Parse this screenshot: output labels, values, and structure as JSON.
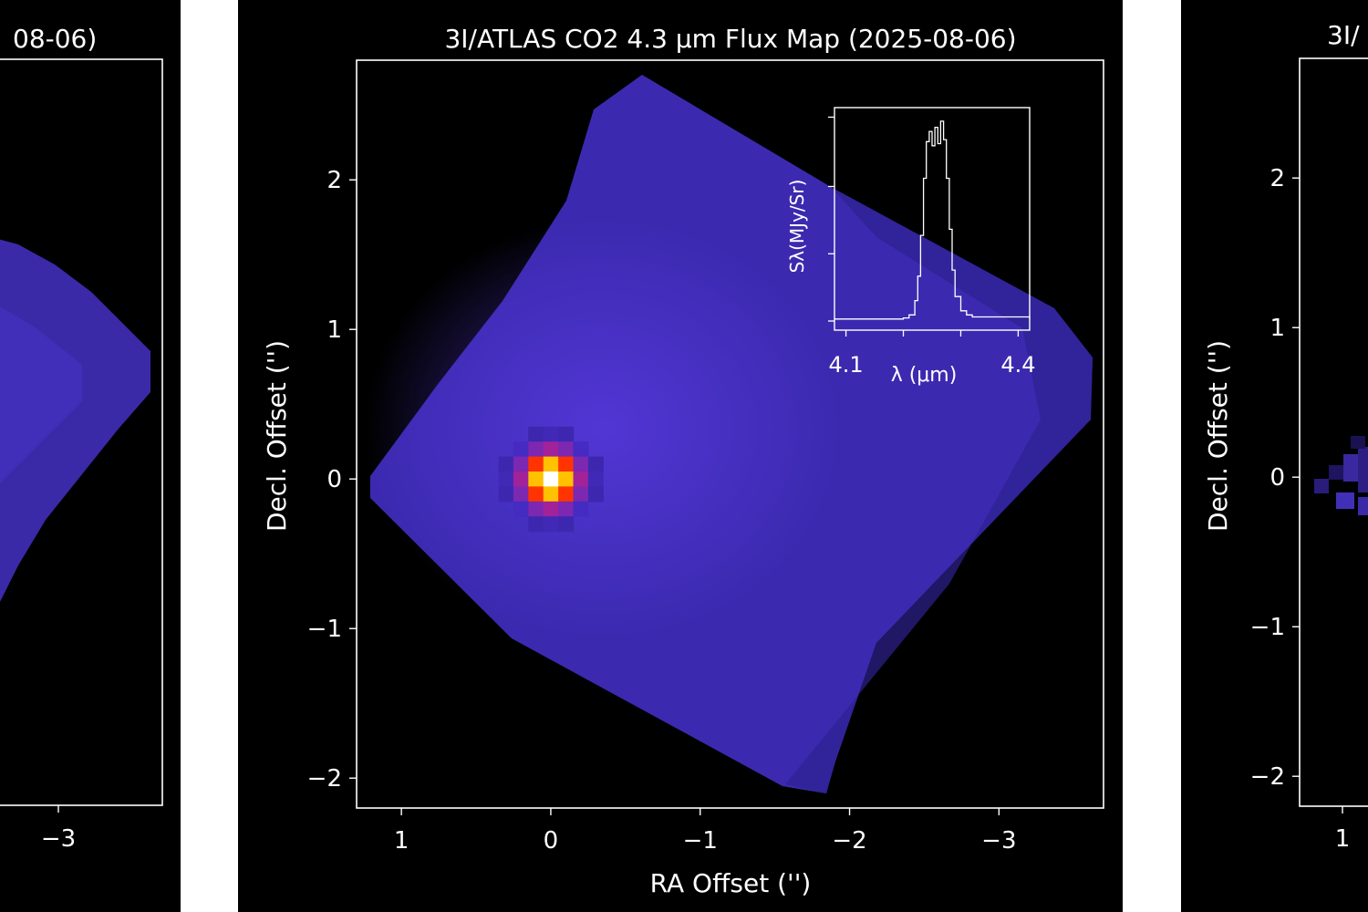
{
  "chart_data": [
    {
      "type": "heatmap",
      "panel": "left",
      "title": "08-06)",
      "xticks": [
        "−3"
      ],
      "notes": "cropped left panel"
    },
    {
      "type": "heatmap",
      "panel": "center",
      "title": "3I/ATLAS CO2 4.3 μm Flux Map (2025-08-06)",
      "xlabel": "RA Offset ('')",
      "ylabel": "Decl. Offset ('')",
      "x_range": [
        1.3,
        -3.7
      ],
      "y_range": [
        -2.2,
        2.8
      ],
      "xticks": [
        {
          "v": 1,
          "label": "1"
        },
        {
          "v": 0,
          "label": "0"
        },
        {
          "v": -1,
          "label": "−1"
        },
        {
          "v": -2,
          "label": "−2"
        },
        {
          "v": -3,
          "label": "−3"
        }
      ],
      "yticks": [
        {
          "v": 2,
          "label": "2"
        },
        {
          "v": 1,
          "label": "1"
        },
        {
          "v": 0,
          "label": "0"
        },
        {
          "v": -1,
          "label": "−1"
        },
        {
          "v": -2,
          "label": "−2"
        }
      ],
      "peak": {
        "x": 0.0,
        "y": 0.0
      },
      "colormap": [
        "#000000",
        "#2a1a7a",
        "#4b2fd0",
        "#b02090",
        "#ff3300",
        "#ffd700",
        "#ffffff"
      ],
      "inset": {
        "type": "line",
        "xlabel": "λ (μm)",
        "ylabel": "Sλ(MJy/Sr)",
        "x_range": [
          4.08,
          4.42
        ],
        "xticks": [
          {
            "v": 4.1,
            "label": "4.1"
          },
          {
            "v": 4.2,
            "label": ""
          },
          {
            "v": 4.3,
            "label": ""
          },
          {
            "v": 4.4,
            "label": "4.4"
          }
        ],
        "y_range": [
          0,
          1.02
        ],
        "yticks": [
          0,
          0.33,
          0.66,
          1.0
        ],
        "spectrum": [
          [
            4.08,
            0.01
          ],
          [
            4.2,
            0.015
          ],
          [
            4.21,
            0.03
          ],
          [
            4.22,
            0.1
          ],
          [
            4.225,
            0.22
          ],
          [
            4.23,
            0.42
          ],
          [
            4.235,
            0.7
          ],
          [
            4.24,
            0.88
          ],
          [
            4.245,
            0.93
          ],
          [
            4.25,
            0.86
          ],
          [
            4.255,
            0.95
          ],
          [
            4.26,
            0.87
          ],
          [
            4.265,
            0.98
          ],
          [
            4.27,
            0.89
          ],
          [
            4.275,
            0.7
          ],
          [
            4.28,
            0.45
          ],
          [
            4.285,
            0.25
          ],
          [
            4.29,
            0.12
          ],
          [
            4.3,
            0.05
          ],
          [
            4.31,
            0.03
          ],
          [
            4.32,
            0.02
          ],
          [
            4.42,
            0.01
          ]
        ]
      }
    },
    {
      "type": "heatmap",
      "panel": "right",
      "title": "3I/",
      "ylabel": "Decl. Offset ('')",
      "yticks": [
        {
          "v": 2,
          "label": "2"
        },
        {
          "v": 1,
          "label": "1"
        },
        {
          "v": 0,
          "label": "0"
        },
        {
          "v": -1,
          "label": "−1"
        },
        {
          "v": -2,
          "label": "−2"
        }
      ],
      "xticks": [
        "1"
      ],
      "notes": "cropped right panel"
    }
  ]
}
